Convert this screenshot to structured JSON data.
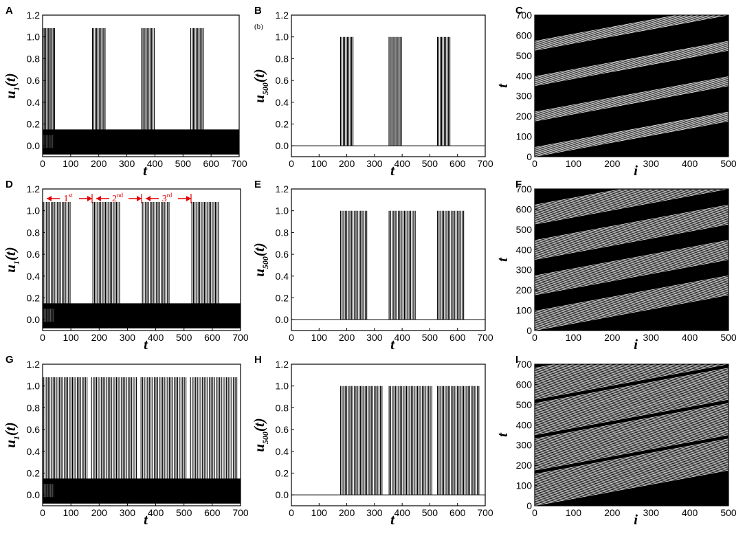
{
  "chart_data": [
    {
      "panel": "A",
      "type": "line",
      "xlabel": "t",
      "ylabel": "u_1(t)",
      "xlim": [
        0,
        700
      ],
      "ylim": [
        -0.1,
        1.2
      ],
      "xticks": [
        0,
        100,
        200,
        300,
        400,
        500,
        600,
        700
      ],
      "yticks": [
        0.0,
        0.2,
        0.4,
        0.6,
        0.8,
        1.0
      ],
      "spike_peak": 1.08,
      "baseline_band": [
        -0.08,
        0.15
      ],
      "bursts": [
        [
          0,
          45
        ],
        [
          175,
          225
        ],
        [
          350,
          400
        ],
        [
          525,
          575
        ]
      ],
      "spikes_per_burst": 10,
      "note": ""
    },
    {
      "panel": "B",
      "type": "line",
      "xlabel": "t",
      "ylabel": "u_500(t)",
      "xlim": [
        0,
        700
      ],
      "ylim": [
        -0.1,
        1.2
      ],
      "xticks": [
        0,
        100,
        200,
        300,
        400,
        500,
        600,
        700
      ],
      "yticks": [
        0.0,
        0.2,
        0.4,
        0.6,
        0.8,
        1.0
      ],
      "spike_peak": 1.0,
      "baseline": 0.0,
      "bursts": [
        [
          175,
          225
        ],
        [
          350,
          400
        ],
        [
          525,
          575
        ]
      ],
      "spikes_per_burst": 10,
      "note": "(b)"
    },
    {
      "panel": "C",
      "type": "heatmap",
      "xlabel": "i",
      "ylabel": "t",
      "xlim": [
        0,
        500
      ],
      "ylim": [
        0,
        700
      ],
      "xticks": [
        0,
        100,
        200,
        300,
        400,
        500
      ],
      "yticks": [
        0,
        100,
        200,
        300,
        400,
        500,
        600,
        700
      ],
      "wave_start_t": [
        0,
        175,
        350,
        525
      ],
      "wave_slope": 0.35,
      "wave_width": 50,
      "lines_per_wave": 10,
      "background": "black",
      "spikes": "white"
    },
    {
      "panel": "D",
      "type": "line",
      "xlabel": "t",
      "ylabel": "u_1(t)",
      "xlim": [
        0,
        700
      ],
      "ylim": [
        -0.1,
        1.2
      ],
      "xticks": [
        0,
        100,
        200,
        300,
        400,
        500,
        600,
        700
      ],
      "yticks": [
        0.0,
        0.2,
        0.4,
        0.6,
        0.8,
        1.0
      ],
      "spike_peak": 1.08,
      "baseline_band": [
        -0.08,
        0.15
      ],
      "bursts": [
        [
          0,
          100
        ],
        [
          175,
          275
        ],
        [
          350,
          450
        ],
        [
          525,
          625
        ]
      ],
      "spikes_per_burst": 18,
      "cycles": [
        {
          "base": "1",
          "sup": "st",
          "range": [
            0,
            175
          ]
        },
        {
          "base": "2",
          "sup": "nd",
          "range": [
            175,
            350
          ]
        },
        {
          "base": "3",
          "sup": "rd",
          "range": [
            350,
            525
          ]
        }
      ]
    },
    {
      "panel": "E",
      "type": "line",
      "xlabel": "t",
      "ylabel": "u_500(t)",
      "xlim": [
        0,
        700
      ],
      "ylim": [
        -0.1,
        1.2
      ],
      "xticks": [
        0,
        100,
        200,
        300,
        400,
        500,
        600,
        700
      ],
      "yticks": [
        0.0,
        0.2,
        0.4,
        0.6,
        0.8,
        1.0
      ],
      "spike_peak": 1.0,
      "baseline": 0.0,
      "bursts": [
        [
          175,
          275
        ],
        [
          350,
          450
        ],
        [
          525,
          625
        ]
      ],
      "spikes_per_burst": 18
    },
    {
      "panel": "F",
      "type": "heatmap",
      "xlabel": "i",
      "ylabel": "t",
      "xlim": [
        0,
        500
      ],
      "ylim": [
        0,
        700
      ],
      "xticks": [
        0,
        100,
        200,
        300,
        400,
        500
      ],
      "yticks": [
        0,
        100,
        200,
        300,
        400,
        500,
        600,
        700
      ],
      "wave_start_t": [
        0,
        175,
        350,
        525
      ],
      "wave_slope": 0.35,
      "wave_width": 100,
      "lines_per_wave": 18,
      "background": "black",
      "spikes": "white"
    },
    {
      "panel": "G",
      "type": "line",
      "xlabel": "t",
      "ylabel": "u_1(t)",
      "xlim": [
        0,
        700
      ],
      "ylim": [
        -0.1,
        1.2
      ],
      "xticks": [
        0,
        100,
        200,
        300,
        400,
        500,
        600,
        700
      ],
      "yticks": [
        0.0,
        0.2,
        0.4,
        0.6,
        0.8,
        1.0
      ],
      "spike_peak": 1.08,
      "baseline_band": [
        -0.08,
        0.15
      ],
      "bursts": [
        [
          0,
          160
        ],
        [
          170,
          335
        ],
        [
          345,
          510
        ],
        [
          520,
          690
        ]
      ],
      "spikes_per_burst": 28
    },
    {
      "panel": "H",
      "type": "line",
      "xlabel": "t",
      "ylabel": "u_500(t)",
      "xlim": [
        0,
        700
      ],
      "ylim": [
        -0.1,
        1.2
      ],
      "xticks": [
        0,
        100,
        200,
        300,
        400,
        500,
        600,
        700
      ],
      "yticks": [
        0.0,
        0.2,
        0.4,
        0.6,
        0.8,
        1.0
      ],
      "spike_peak": 1.0,
      "baseline": 0.0,
      "bursts": [
        [
          175,
          330
        ],
        [
          350,
          510
        ],
        [
          525,
          680
        ]
      ],
      "spikes_per_burst": 28
    },
    {
      "panel": "I",
      "type": "heatmap",
      "xlabel": "i",
      "ylabel": "t",
      "xlim": [
        0,
        500
      ],
      "ylim": [
        0,
        700
      ],
      "xticks": [
        0,
        100,
        200,
        300,
        400,
        500
      ],
      "yticks": [
        0,
        100,
        200,
        300,
        400,
        500,
        600,
        700
      ],
      "wave_start_t": [
        0,
        175,
        350,
        525
      ],
      "wave_slope": 0.35,
      "wave_width": 160,
      "lines_per_wave": 28,
      "background": "black",
      "spikes": "white"
    }
  ]
}
